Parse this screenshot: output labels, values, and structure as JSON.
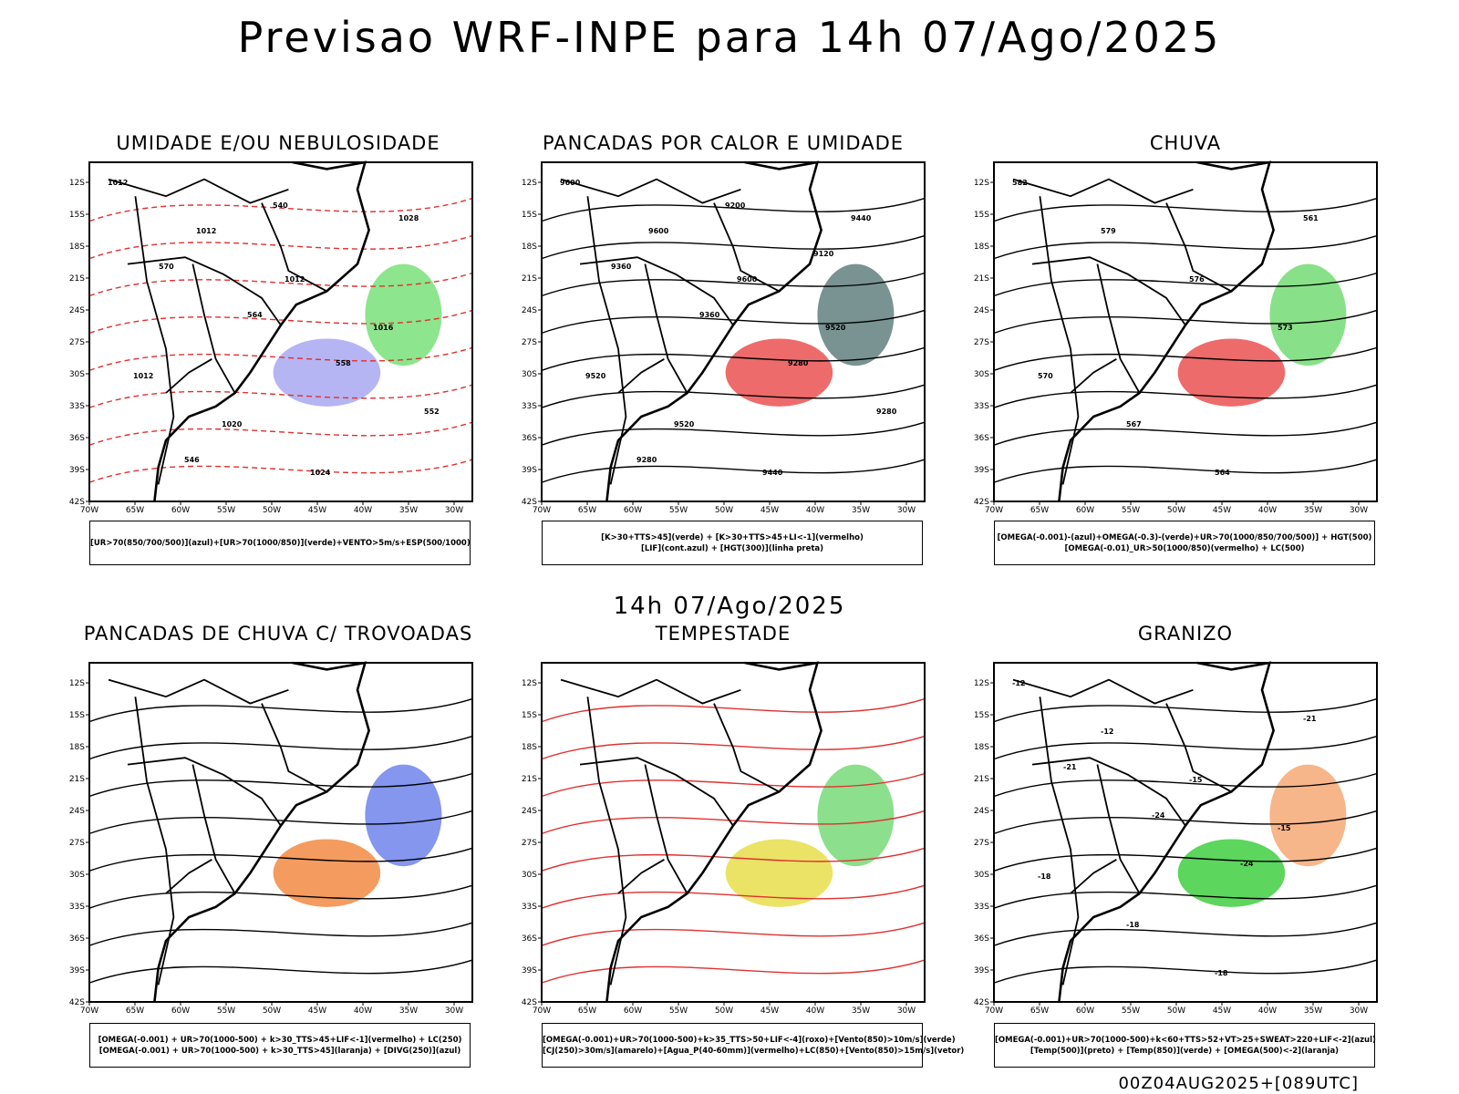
{
  "header": {
    "title": "Previsao WRF-INPE  para 14h 07/Ago/2025"
  },
  "mid_title": "14h 07/Ago/2025",
  "footer": "00Z04AUG2025+[089UTC]",
  "axes": {
    "lat_labels": [
      "12S",
      "15S",
      "18S",
      "21S",
      "24S",
      "27S",
      "30S",
      "33S",
      "36S",
      "39S",
      "42S"
    ],
    "lon_labels": [
      "70W",
      "65W",
      "60W",
      "55W",
      "50W",
      "45W",
      "40W",
      "35W",
      "30W"
    ]
  },
  "panels": [
    {
      "title": "UMIDADE E/OU NEBULOSIDADE",
      "legend": [
        "[UR>70(850/700/500)](azul)+[UR>70(1000/850)](verde)+VENTO>5m/s+ESP(500/1000)"
      ],
      "contour_labels": [
        "1012",
        "1012",
        "1012",
        "1016",
        "1012",
        "1020",
        "1024",
        "1028",
        "570",
        "564",
        "558",
        "552",
        "546",
        "540"
      ]
    },
    {
      "title": "PANCADAS POR CALOR E UMIDADE",
      "legend": [
        "[K>30+TTS>45](verde) + [K>30+TTS>45+LI<-1](vermelho)",
        "[LIF](cont.azul) + [HGT(300)](linha preta)"
      ],
      "contour_labels": [
        "9600",
        "9600",
        "9600",
        "9520",
        "9520",
        "9520",
        "9440",
        "9440",
        "9360",
        "9360",
        "9280",
        "9280",
        "9280",
        "9200",
        "9120"
      ]
    },
    {
      "title": "CHUVA",
      "legend": [
        "[OMEGA(-0.001)-(azul)+OMEGA(-0.3)-(verde)+UR>70(1000/850/700/500)] + HGT(500)",
        "[OMEGA(-0.01)_UR>50(1000/850)(vermelho) + LC(500)"
      ],
      "contour_labels": [
        "582",
        "579",
        "576",
        "573",
        "570",
        "567",
        "564",
        "561"
      ]
    },
    {
      "title": "PANCADAS DE CHUVA C/ TROVOADAS",
      "legend": [
        "[OMEGA(-0.001) + UR>70(1000-500) + k>30_TTS>45+LIF<-1](vermelho) + LC(250)",
        "[OMEGA(-0.001) + UR>70(1000-500) + k>30_TTS>45](laranja) + [DIVG(250)](azul)"
      ],
      "contour_labels": []
    },
    {
      "title": "TEMPESTADE",
      "legend": [
        "[OMEGA(-0.001)+UR>70(1000-500)+k>35_TTS>50+LIF<-4](roxo)+[Vento(850)>10m/s](verde)",
        "[CJ(250)>30m/s](amarelo)+[Agua_P(40-60mm)](vermelho)+LC(850)+[Vento(850)>15m/s](vetor)"
      ],
      "contour_labels": []
    },
    {
      "title": "GRANIZO",
      "legend": [
        "[OMEGA(-0.001)+UR>70(1000-500)+k<60+TTS>52+VT>25+SWEAT>220+LIF<-2](azul)",
        "[Temp(500)](preto) + [Temp(850)](verde) + [OMEGA(500)<-2](laranja)"
      ],
      "contour_labels": [
        "-12",
        "-12",
        "-15",
        "-15",
        "-18",
        "-18",
        "-18",
        "-21",
        "-21",
        "-24",
        "-24"
      ]
    }
  ]
}
